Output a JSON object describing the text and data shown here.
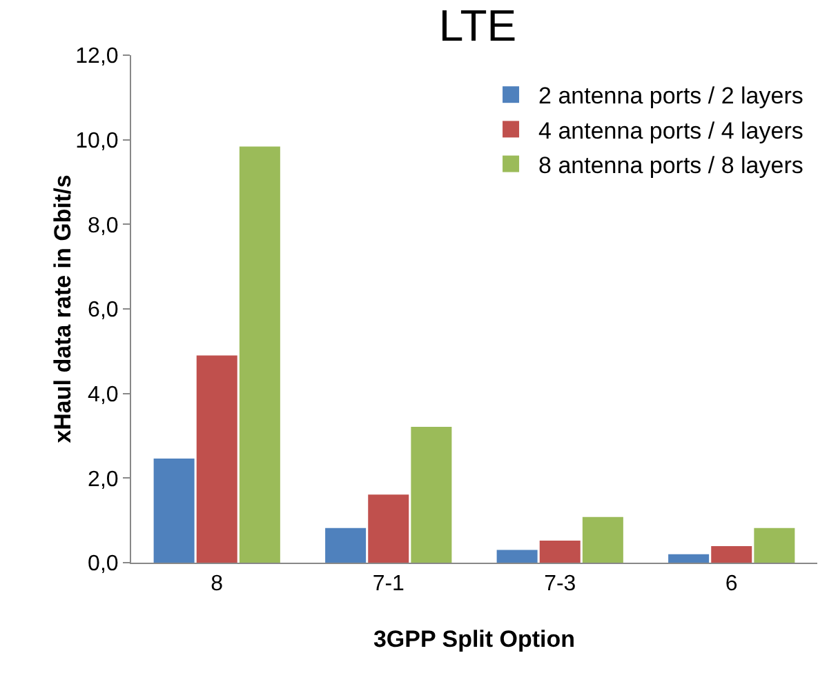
{
  "chart_data": {
    "type": "bar",
    "title": "LTE",
    "xlabel": "3GPP Split Option",
    "ylabel": "xHaul data rate in Gbit/s",
    "categories": [
      "8",
      "7-1",
      "7-3",
      "6"
    ],
    "series": [
      {
        "name": "2 antenna ports / 2 layers",
        "color": "#4f81bd",
        "values": [
          2.46,
          0.82,
          0.3,
          0.2
        ]
      },
      {
        "name": "4 antenna ports / 4 layers",
        "color": "#c0504d",
        "values": [
          4.9,
          1.61,
          0.52,
          0.39
        ]
      },
      {
        "name": "8 antenna ports / 8 layers",
        "color": "#9bbb59",
        "values": [
          9.84,
          3.21,
          1.08,
          0.82
        ]
      }
    ],
    "ylim": [
      0,
      12
    ],
    "yticks": [
      {
        "value": 0,
        "label": "0,0"
      },
      {
        "value": 2,
        "label": "2,0"
      },
      {
        "value": 4,
        "label": "4,0"
      },
      {
        "value": 6,
        "label": "6,0"
      },
      {
        "value": 8,
        "label": "8,0"
      },
      {
        "value": 10,
        "label": "10,0"
      },
      {
        "value": 12,
        "label": "12,0"
      }
    ],
    "grid": false,
    "legend": "top right"
  }
}
